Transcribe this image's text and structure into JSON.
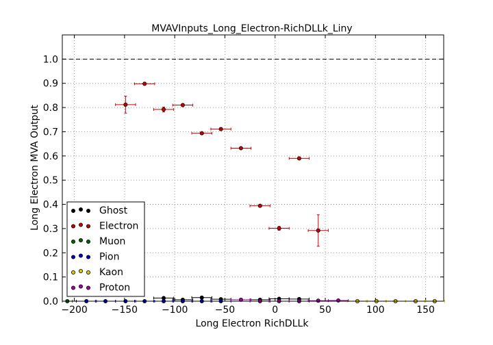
{
  "chart_data": {
    "type": "scatter",
    "title": "MVAVInputs_Long_Electron-RichDLLk_Liny",
    "xlabel": "Long Electron RichDLLk",
    "ylabel": "Long Electron MVA Output",
    "xlim": [
      -212,
      168
    ],
    "ylim": [
      0.0,
      1.1
    ],
    "x_ticks": [
      "−200",
      "−150",
      "−100",
      "−50",
      "0",
      "50",
      "100",
      "150"
    ],
    "x_tick_values": [
      -200,
      -150,
      -100,
      -50,
      0,
      50,
      100,
      150
    ],
    "y_ticks": [
      "0.0",
      "0.1",
      "0.2",
      "0.3",
      "0.4",
      "0.5",
      "0.6",
      "0.7",
      "0.8",
      "0.9",
      "1.0"
    ],
    "y_tick_values": [
      0.0,
      0.1,
      0.2,
      0.3,
      0.4,
      0.5,
      0.6,
      0.7,
      0.8,
      0.9,
      1.0
    ],
    "grid": true,
    "reference_line": {
      "y": 1.0,
      "style": "dashed"
    },
    "legend_position": "lower-left",
    "series": [
      {
        "name": "Ghost",
        "color": "#000000",
        "points": [
          {
            "x": -111,
            "y": 0.013,
            "xerr": 10,
            "yerr": 0.003
          },
          {
            "x": -92,
            "y": 0.006,
            "xerr": 10,
            "yerr": 0.002
          },
          {
            "x": -73,
            "y": 0.015,
            "xerr": 10,
            "yerr": 0.003
          },
          {
            "x": -54,
            "y": 0.008,
            "xerr": 10,
            "yerr": 0.002
          },
          {
            "x": -15,
            "y": 0.006,
            "xerr": 10,
            "yerr": 0.002
          },
          {
            "x": 4,
            "y": 0.01,
            "xerr": 10,
            "yerr": 0.002
          },
          {
            "x": 24,
            "y": 0.009,
            "xerr": 10,
            "yerr": 0.002
          }
        ]
      },
      {
        "name": "Electron",
        "color": "#cc0000",
        "points": [
          {
            "x": -149,
            "y": 0.812,
            "xerr": 10,
            "yerr": 0.035
          },
          {
            "x": -130,
            "y": 0.898,
            "xerr": 10,
            "yerr": 0.006
          },
          {
            "x": -111,
            "y": 0.792,
            "xerr": 10,
            "yerr": 0.01
          },
          {
            "x": -92,
            "y": 0.81,
            "xerr": 10,
            "yerr": 0.006
          },
          {
            "x": -73,
            "y": 0.694,
            "xerr": 10,
            "yerr": 0.005
          },
          {
            "x": -54,
            "y": 0.711,
            "xerr": 10,
            "yerr": 0.006
          },
          {
            "x": -34,
            "y": 0.632,
            "xerr": 10,
            "yerr": 0.005
          },
          {
            "x": -15,
            "y": 0.394,
            "xerr": 10,
            "yerr": 0.005
          },
          {
            "x": 4,
            "y": 0.301,
            "xerr": 10,
            "yerr": 0.008
          },
          {
            "x": 24,
            "y": 0.59,
            "xerr": 10,
            "yerr": 0.006
          },
          {
            "x": 43,
            "y": 0.292,
            "xerr": 10,
            "yerr": 0.065
          }
        ]
      },
      {
        "name": "Muon",
        "color": "#006600",
        "points": [
          {
            "x": -207,
            "y": 0.0,
            "xerr": 5,
            "yerr": 0.001
          }
        ]
      },
      {
        "name": "Pion",
        "color": "#0000cc",
        "points": [
          {
            "x": -188,
            "y": 0.0,
            "xerr": 10,
            "yerr": 0.001
          },
          {
            "x": -169,
            "y": 0.0,
            "xerr": 10,
            "yerr": 0.001
          },
          {
            "x": -149,
            "y": 0.0,
            "xerr": 10,
            "yerr": 0.001
          },
          {
            "x": -130,
            "y": 0.0,
            "xerr": 10,
            "yerr": 0.001
          },
          {
            "x": -111,
            "y": 0.0,
            "xerr": 10,
            "yerr": 0.001
          },
          {
            "x": -92,
            "y": 0.0,
            "xerr": 10,
            "yerr": 0.001
          },
          {
            "x": -73,
            "y": 0.0,
            "xerr": 10,
            "yerr": 0.001
          },
          {
            "x": -54,
            "y": 0.0,
            "xerr": 10,
            "yerr": 0.001
          }
        ]
      },
      {
        "name": "Kaon",
        "color": "#ddcc00",
        "points": [
          {
            "x": 82,
            "y": 0.0,
            "xerr": 10,
            "yerr": 0.001
          },
          {
            "x": 101,
            "y": 0.0,
            "xerr": 10,
            "yerr": 0.001
          },
          {
            "x": 120,
            "y": 0.0,
            "xerr": 10,
            "yerr": 0.001
          },
          {
            "x": 140,
            "y": 0.0,
            "xerr": 10,
            "yerr": 0.001
          },
          {
            "x": 159,
            "y": 0.0,
            "xerr": 10,
            "yerr": 0.001
          }
        ]
      },
      {
        "name": "Proton",
        "color": "#aa00aa",
        "points": [
          {
            "x": -34,
            "y": 0.006,
            "xerr": 10,
            "yerr": 0.002
          },
          {
            "x": -15,
            "y": 0.0,
            "xerr": 10,
            "yerr": 0.001
          },
          {
            "x": 4,
            "y": 0.0,
            "xerr": 10,
            "yerr": 0.001
          },
          {
            "x": 24,
            "y": 0.0,
            "xerr": 10,
            "yerr": 0.001
          },
          {
            "x": 43,
            "y": 0.002,
            "xerr": 10,
            "yerr": 0.001
          },
          {
            "x": 63,
            "y": 0.003,
            "xerr": 10,
            "yerr": 0.001
          }
        ]
      }
    ]
  }
}
